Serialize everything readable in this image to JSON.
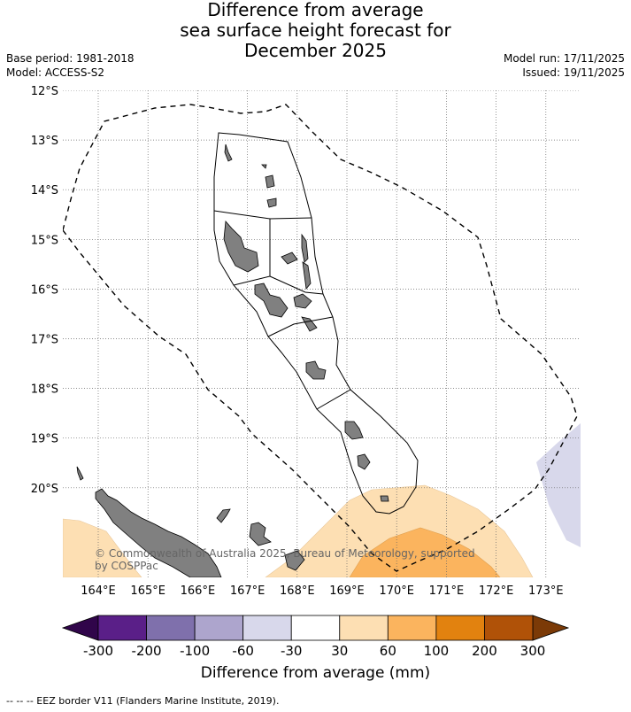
{
  "title": {
    "line1": "Difference from average",
    "line2": "sea surface height forecast for",
    "line3": "December 2025"
  },
  "meta": {
    "base_period": "Base period: 1981-2018",
    "model": "Model: ACCESS-S2",
    "model_run": "Model run: 17/11/2025",
    "issued": "Issued: 19/11/2025"
  },
  "map": {
    "lat_labels": [
      "12°S",
      "13°S",
      "14°S",
      "15°S",
      "16°S",
      "17°S",
      "18°S",
      "19°S",
      "20°S"
    ],
    "lon_labels": [
      "164°E",
      "165°E",
      "166°E",
      "167°E",
      "168°E",
      "169°E",
      "170°E",
      "171°E",
      "172°E",
      "173°E"
    ],
    "gridlines": true,
    "land_color": "#808080",
    "copyright": "© Commonwealth of Australia 2025, Bureau of Meteorology, supported",
    "copyright_line2": "by COSPPac"
  },
  "colorbar": {
    "labels": [
      "-300",
      "-200",
      "-100",
      "-60",
      "-30",
      "30",
      "60",
      "100",
      "200",
      "300"
    ],
    "colors": [
      "#5a1f88",
      "#7f70ac",
      "#ada5cd",
      "#d8d8eb",
      "#ffffff",
      "#fddfb3",
      "#fbb45e",
      "#e2820f",
      "#b05208"
    ],
    "low_extend_color": "#30054a",
    "high_extend_color": "#7b3a07",
    "title": "Difference from average (mm)"
  },
  "footer": "--  --  -- EEZ border V11 (Flanders Marine Institute, 2019)."
}
